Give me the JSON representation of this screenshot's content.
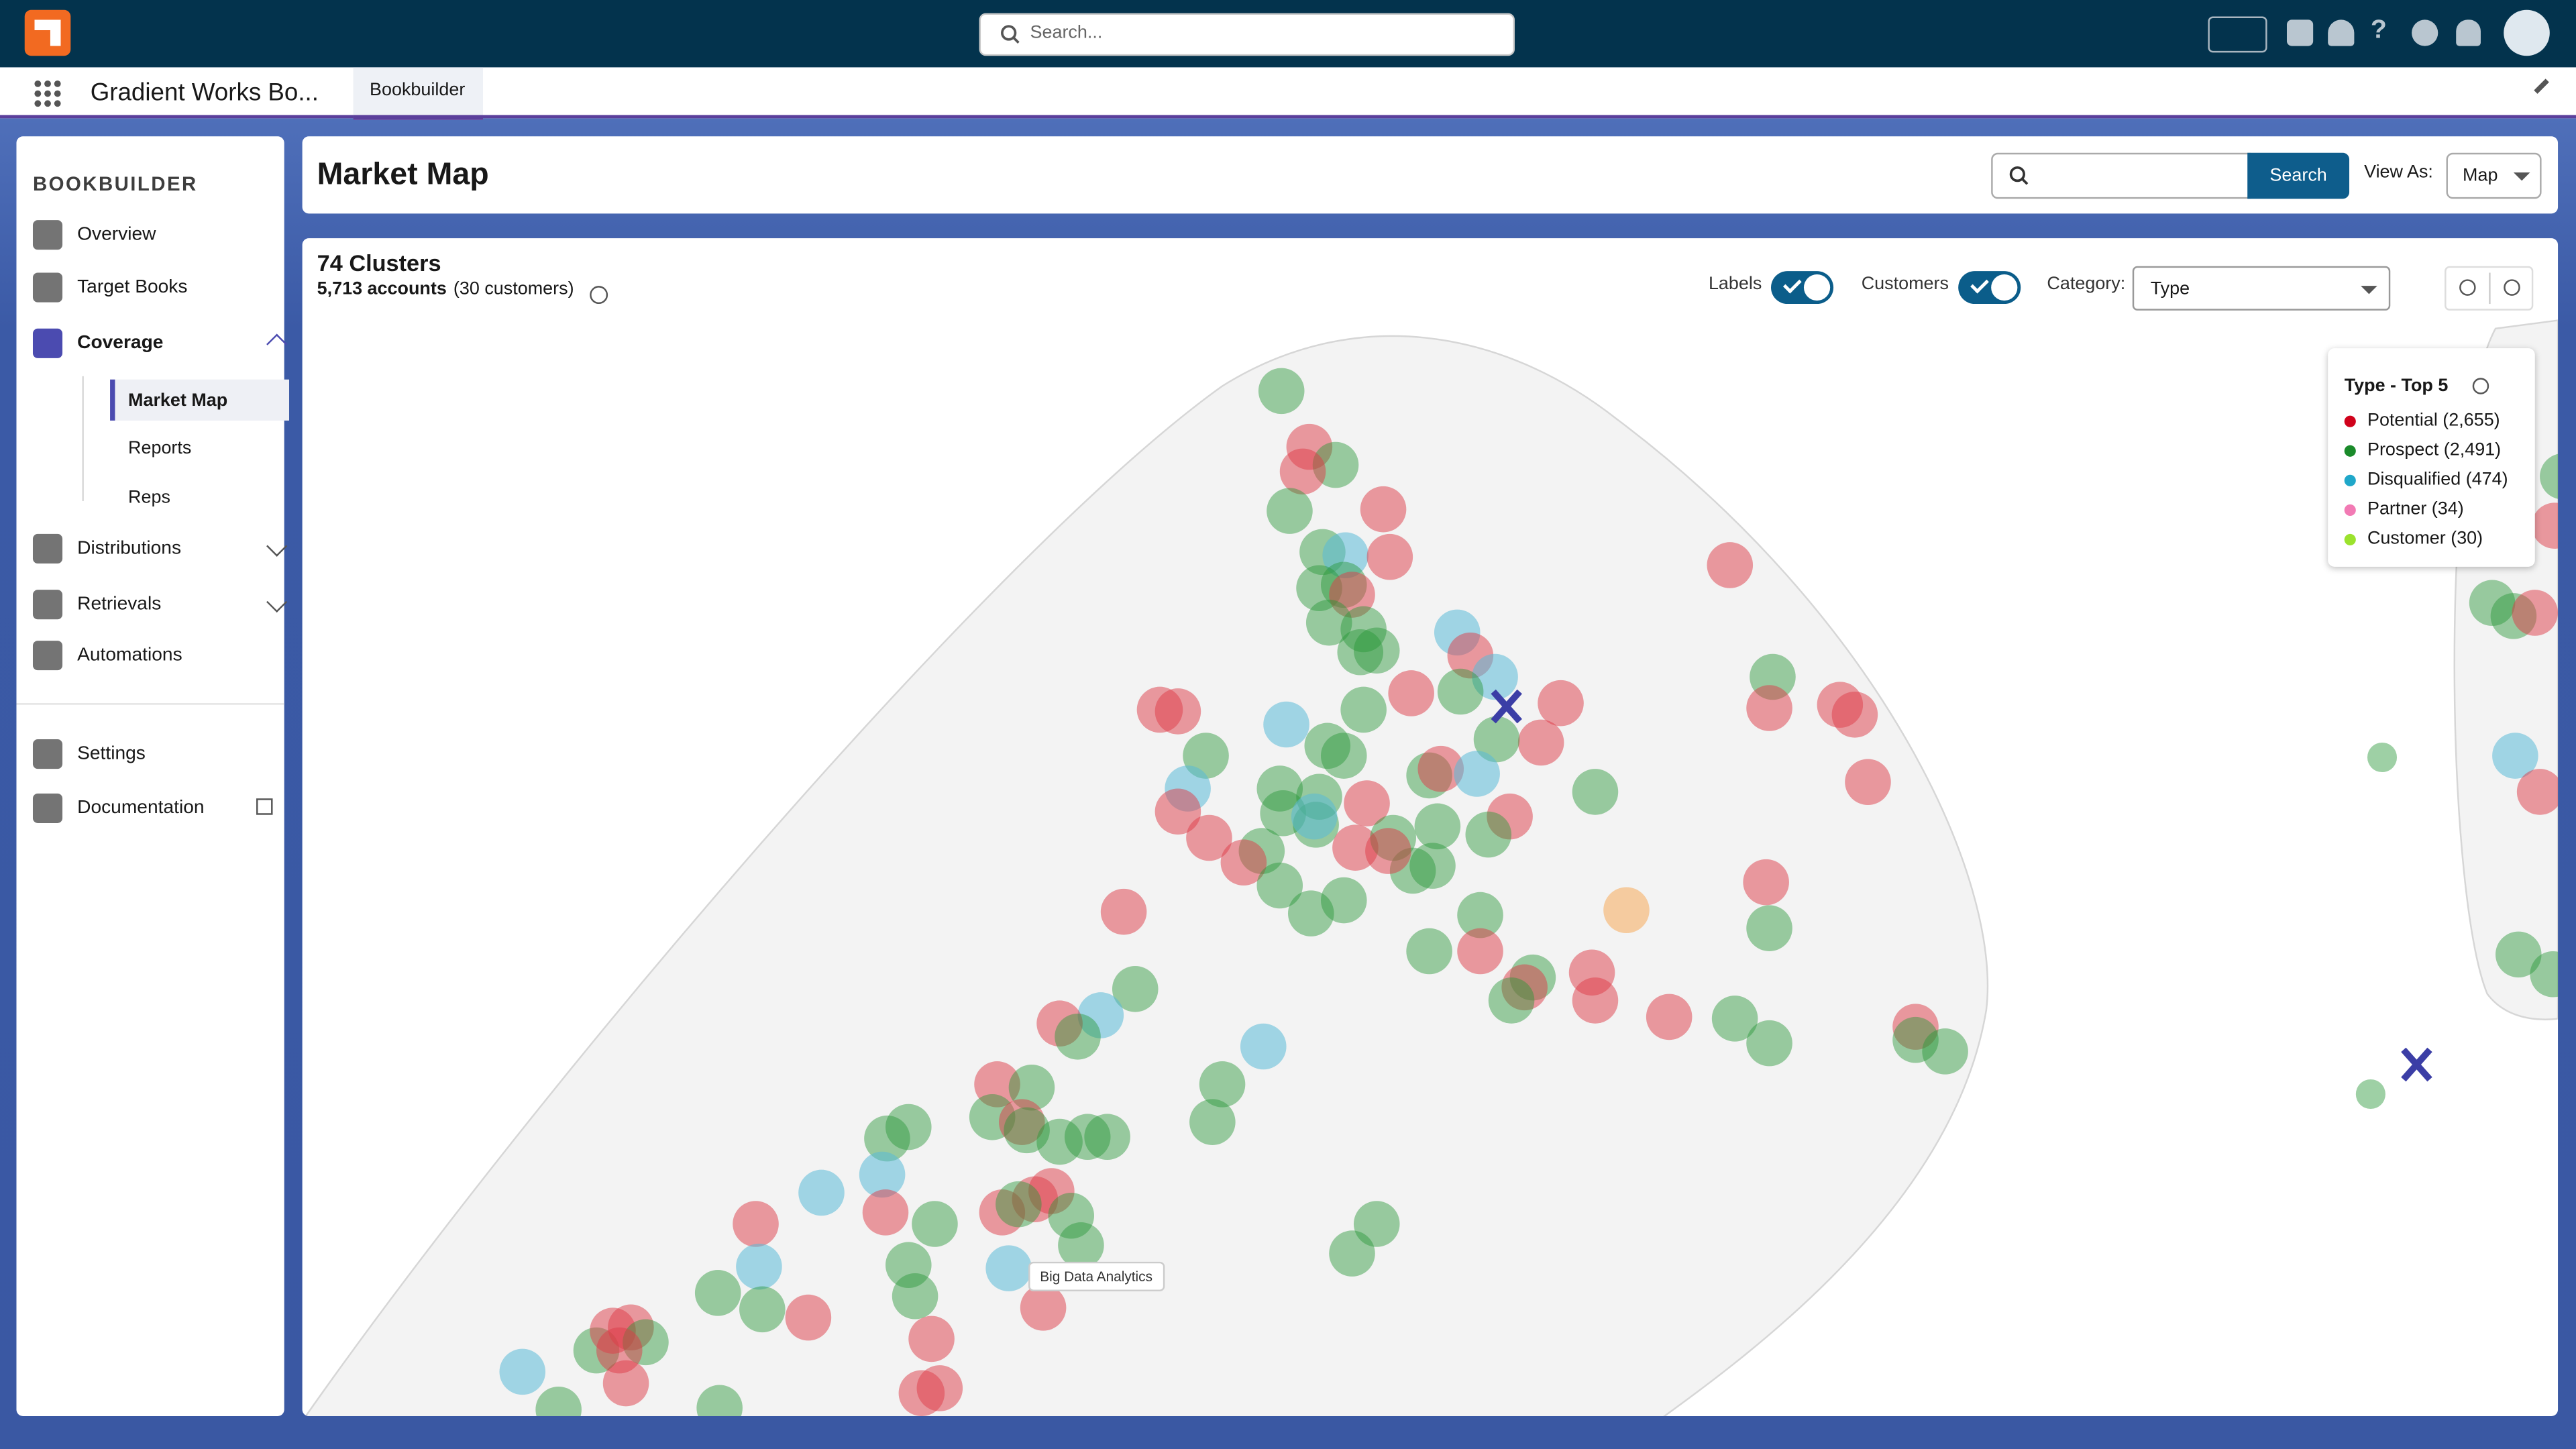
{
  "global_header": {
    "search_placeholder": "Search..."
  },
  "app_nav": {
    "app_name": "Gradient Works Bo...",
    "tab": "Bookbuilder"
  },
  "sidebar": {
    "title": "BOOKBUILDER",
    "items": [
      "Overview",
      "Target Books",
      "Coverage"
    ],
    "sub_items": [
      "Market Map",
      "Reports",
      "Reps"
    ],
    "more_items": [
      "Distributions",
      "Retrievals",
      "Automations"
    ],
    "footer_items": [
      "Settings",
      "Documentation"
    ]
  },
  "page": {
    "title": "Market Map",
    "search_button": "Search",
    "view_as_label": "View As:",
    "view_as_value": "Map"
  },
  "map": {
    "clusters": "74 Clusters",
    "accounts": "5,713 accounts",
    "customers_note": "(30 customers)",
    "labels_toggle": "Labels",
    "customers_toggle": "Customers",
    "category_label": "Category:",
    "category_value": "Type",
    "tooltip": "Big Data Analytics"
  },
  "legend": {
    "title": "Type - Top 5",
    "items": [
      {
        "label": "Potential (2,655)",
        "color": "#d0021b"
      },
      {
        "label": "Prospect (2,491)",
        "color": "#1a8a2a"
      },
      {
        "label": "Disqualified (474)",
        "color": "#1fa7c9"
      },
      {
        "label": "Partner (34)",
        "color": "#f27ab4"
      },
      {
        "label": "Customer (30)",
        "color": "#9be22d"
      }
    ]
  }
}
